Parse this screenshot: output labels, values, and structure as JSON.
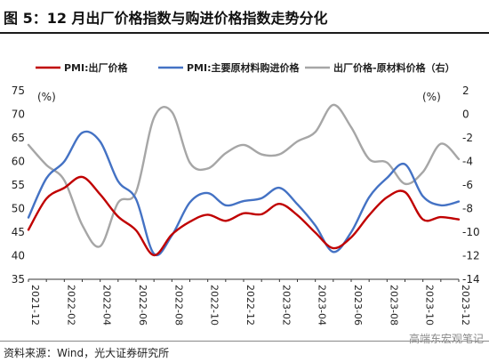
{
  "header": {
    "title": "图 5：12 月出厂价格指数与购进价格指数走势分化"
  },
  "footer": {
    "source": "资料来源：Wind，光大证券研究所",
    "watermark": "高端东宏观笔记"
  },
  "chart_data": {
    "type": "line",
    "left_unit": "(%)",
    "right_unit": "(%)",
    "x": [
      "2021-12",
      "2022-01",
      "2022-02",
      "2022-03",
      "2022-04",
      "2022-05",
      "2022-06",
      "2022-07",
      "2022-08",
      "2022-09",
      "2022-10",
      "2022-11",
      "2022-12",
      "2023-01",
      "2023-02",
      "2023-03",
      "2023-04",
      "2023-05",
      "2023-06",
      "2023-07",
      "2023-08",
      "2023-09",
      "2023-10",
      "2023-11",
      "2023-12"
    ],
    "x_tick_labels": [
      "2021-12",
      "2022-02",
      "2022-04",
      "2022-06",
      "2022-08",
      "2022-10",
      "2022-12",
      "2023-02",
      "2023-04",
      "2023-06",
      "2023-08",
      "2023-10",
      "2023-12"
    ],
    "ylim": [
      35,
      75
    ],
    "y_ticks": [
      35,
      40,
      45,
      50,
      55,
      60,
      65,
      70,
      75
    ],
    "y2lim": [
      -14,
      2
    ],
    "y2_ticks": [
      -14,
      -12,
      -10,
      -8,
      -6,
      -4,
      -2,
      0,
      2
    ],
    "series": [
      {
        "name": "PMI:出厂价格",
        "axis": "left",
        "color": "#c00000",
        "values": [
          45.5,
          52.1,
          54.4,
          56.7,
          53.0,
          48.3,
          45.4,
          40.1,
          44.5,
          47.2,
          48.7,
          47.4,
          49.0,
          48.8,
          51.0,
          48.6,
          44.9,
          41.6,
          43.9,
          48.6,
          52.4,
          53.5,
          47.7,
          48.2,
          47.7
        ]
      },
      {
        "name": "PMI:主要原材料购进价格",
        "axis": "left",
        "color": "#4472c4",
        "values": [
          48.1,
          56.4,
          60.0,
          66.1,
          64.2,
          55.8,
          52.0,
          40.4,
          44.3,
          51.3,
          53.3,
          50.7,
          51.6,
          52.2,
          54.4,
          50.9,
          46.4,
          40.8,
          45.0,
          52.4,
          56.5,
          59.4,
          52.6,
          50.7,
          51.5
        ]
      },
      {
        "name": "出厂价格-原材料价格（右）",
        "axis": "right",
        "color": "#a6a6a6",
        "values": [
          -2.6,
          -4.3,
          -5.6,
          -9.4,
          -11.2,
          -7.5,
          -6.6,
          -0.3,
          0.2,
          -4.1,
          -4.6,
          -3.3,
          -2.6,
          -3.4,
          -3.4,
          -2.3,
          -1.5,
          0.8,
          -1.1,
          -3.8,
          -4.1,
          -5.9,
          -4.9,
          -2.5,
          -3.8
        ]
      }
    ]
  }
}
